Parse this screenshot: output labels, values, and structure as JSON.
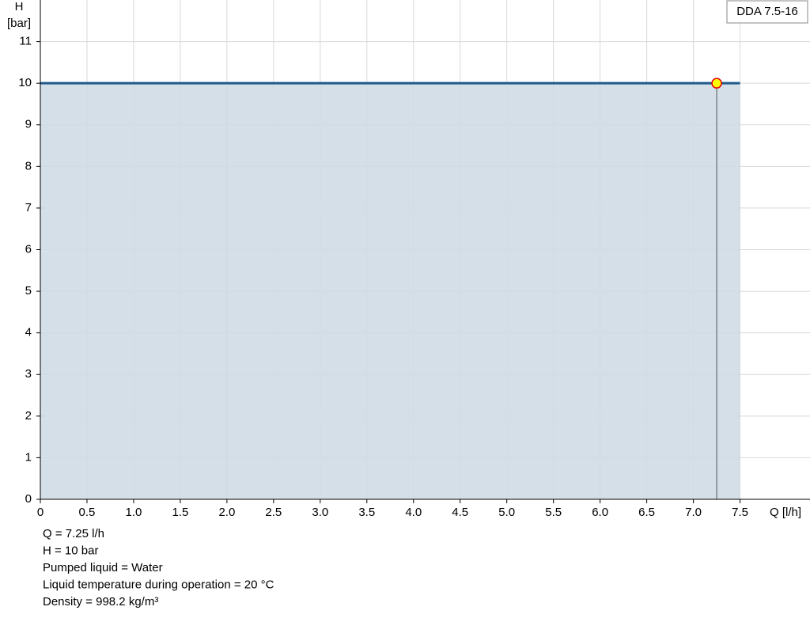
{
  "chart_data": {
    "type": "line",
    "x_label": "Q [l/h]",
    "y_label": [
      "H",
      "[bar]"
    ],
    "series": [
      {
        "name": "DDA 7.5-16",
        "color": "#1f5a8a",
        "fill": "#cfdbe6",
        "x": [
          0,
          7.5
        ],
        "values": [
          10,
          10
        ]
      }
    ],
    "operating_point": {
      "x": 7.25,
      "y": 10,
      "color": "#ffff00",
      "edge": "#e00000"
    },
    "xlim": [
      0,
      8.25
    ],
    "ylim": [
      0,
      12
    ],
    "xticks": [
      0,
      0.5,
      {
        "value": 1,
        "label": "1.0"
      },
      1.5,
      {
        "value": 2,
        "label": "2.0"
      },
      2.5,
      {
        "value": 3,
        "label": "3.0"
      },
      3.5,
      {
        "value": 4,
        "label": "4.0"
      },
      4.5,
      {
        "value": 5,
        "label": "5.0"
      },
      5.5,
      {
        "value": 6,
        "label": "6.0"
      },
      6.5,
      {
        "value": 7,
        "label": "7.0"
      },
      7.5
    ],
    "yticks": [
      0,
      1,
      2,
      3,
      4,
      5,
      6,
      7,
      8,
      9,
      10,
      11
    ],
    "grid": true,
    "info": [
      "Q = 7.25 l/h",
      "H = 10 bar",
      "Pumped liquid = Water",
      "Liquid temperature during operation = 20 °C",
      "Density = 998.2 kg/m³"
    ]
  }
}
